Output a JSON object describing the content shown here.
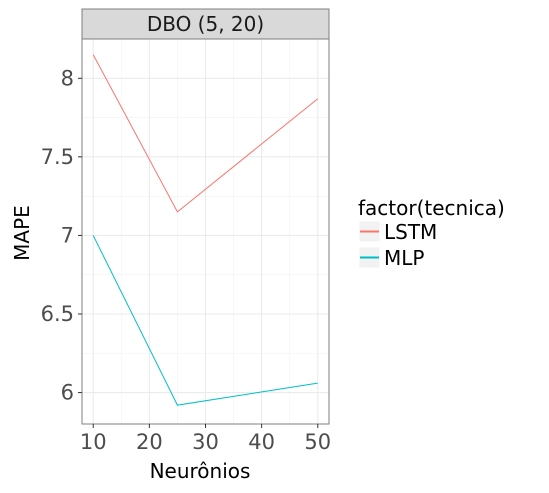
{
  "chart_data": {
    "type": "line",
    "facet_title": "DBO (5, 20)",
    "xlabel": "Neurônios",
    "ylabel": "MAPE",
    "x": [
      10,
      25,
      50
    ],
    "xlim": [
      8,
      52
    ],
    "ylim": [
      5.8,
      8.25
    ],
    "x_ticks": [
      10,
      20,
      30,
      40,
      50
    ],
    "x_tick_labels": [
      "10",
      "20",
      "30",
      "40",
      "50"
    ],
    "y_ticks": [
      6,
      6.5,
      7,
      7.5,
      8
    ],
    "y_tick_labels": [
      "6",
      "6.5",
      "7",
      "7.5",
      "8"
    ],
    "grid": true,
    "legend": {
      "title": "factor(tecnica)",
      "position": "right"
    },
    "series": [
      {
        "name": "LSTM",
        "color": "#F8766D",
        "values": [
          8.15,
          7.15,
          7.87
        ]
      },
      {
        "name": "MLP",
        "color": "#00BFC4",
        "values": [
          7.0,
          5.92,
          6.06
        ]
      }
    ]
  }
}
